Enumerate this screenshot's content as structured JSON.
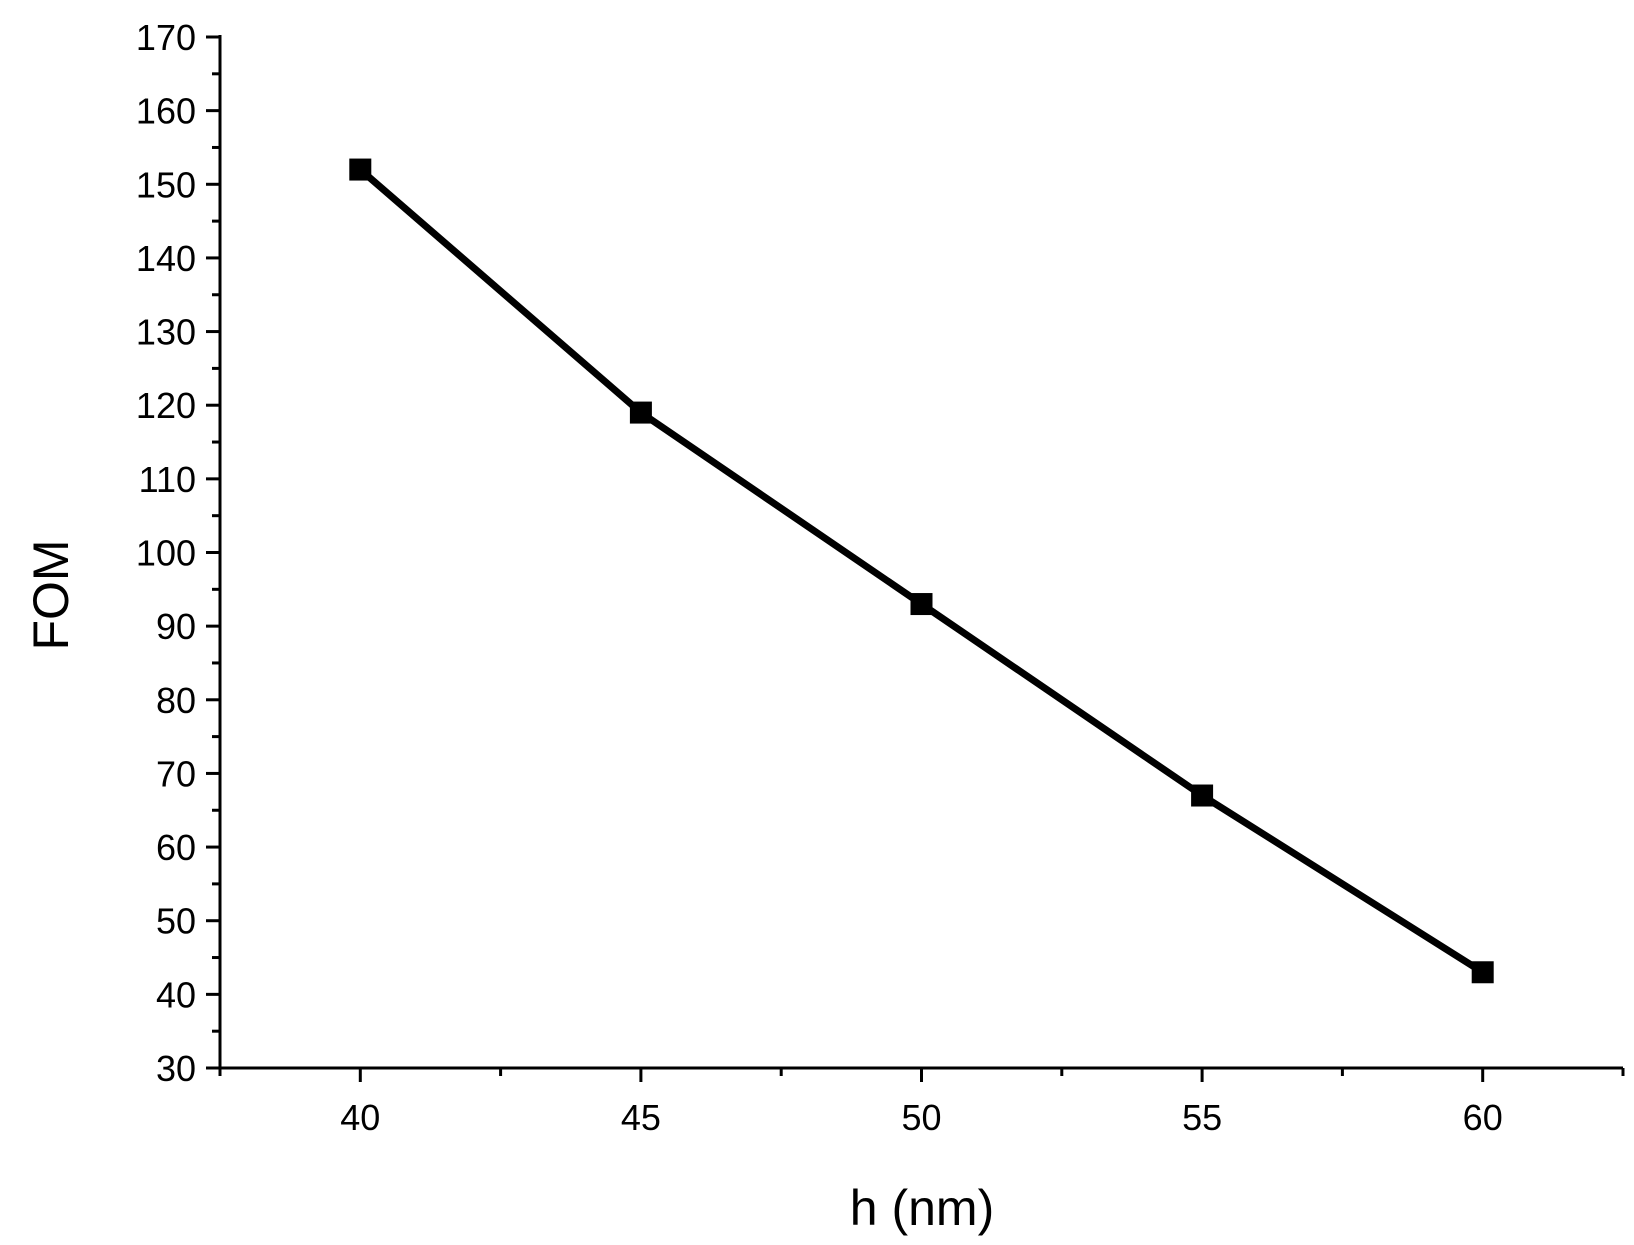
{
  "chart_data": {
    "type": "line",
    "title": "",
    "xlabel": "h (nm)",
    "ylabel": "FOM",
    "xlim": [
      37.5,
      62.5
    ],
    "ylim": [
      30,
      170
    ],
    "x_ticks": [
      40,
      45,
      50,
      55,
      60
    ],
    "y_ticks": [
      30,
      40,
      50,
      60,
      70,
      80,
      90,
      100,
      110,
      120,
      130,
      140,
      150,
      160,
      170
    ],
    "grid": false,
    "legend": "none",
    "series": [
      {
        "x": [
          40,
          45,
          50,
          55,
          60
        ],
        "y": [
          152,
          119,
          93,
          67,
          43
        ],
        "color": "#000000",
        "marker": "square"
      }
    ]
  }
}
